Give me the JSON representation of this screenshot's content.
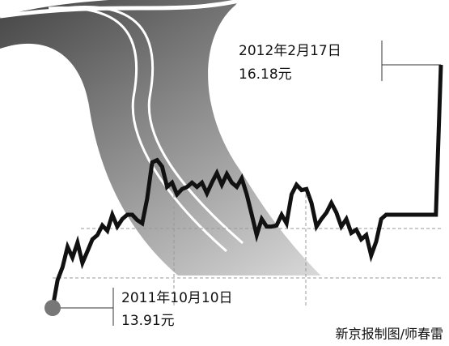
{
  "chart_data": {
    "type": "line",
    "color": "#111111",
    "values": [
      13.91,
      14.17,
      14.29,
      14.48,
      14.38,
      14.52,
      14.33,
      14.44,
      14.55,
      14.59,
      14.68,
      14.63,
      14.78,
      14.67,
      14.74,
      14.78,
      14.78,
      14.73,
      14.7,
      14.93,
      15.27,
      15.29,
      15.23,
      15.04,
      15.08,
      14.97,
      15.02,
      15.04,
      15.08,
      15.04,
      15.08,
      14.98,
      15.08,
      15.17,
      15.06,
      15.16,
      15.08,
      15.04,
      15.12,
      14.97,
      14.78,
      14.59,
      14.74,
      14.67,
      14.67,
      14.68,
      14.78,
      14.7,
      14.97,
      15.06,
      15.01,
      15.02,
      14.89,
      14.67,
      14.74,
      14.8,
      14.89,
      14.8,
      14.67,
      14.74,
      14.61,
      14.64,
      14.55,
      14.59,
      14.4,
      14.53,
      14.74,
      14.78,
      14.78,
      14.78,
      14.78,
      14.78,
      14.78,
      14.78,
      14.78,
      14.78,
      14.78,
      14.78,
      16.18
    ],
    "annotations": [
      {
        "date": "2012年2月17日",
        "price": "16.18元"
      },
      {
        "date": "2011年10月10日",
        "price": "13.91元"
      }
    ],
    "credit": "新京报制图/师春雷"
  }
}
